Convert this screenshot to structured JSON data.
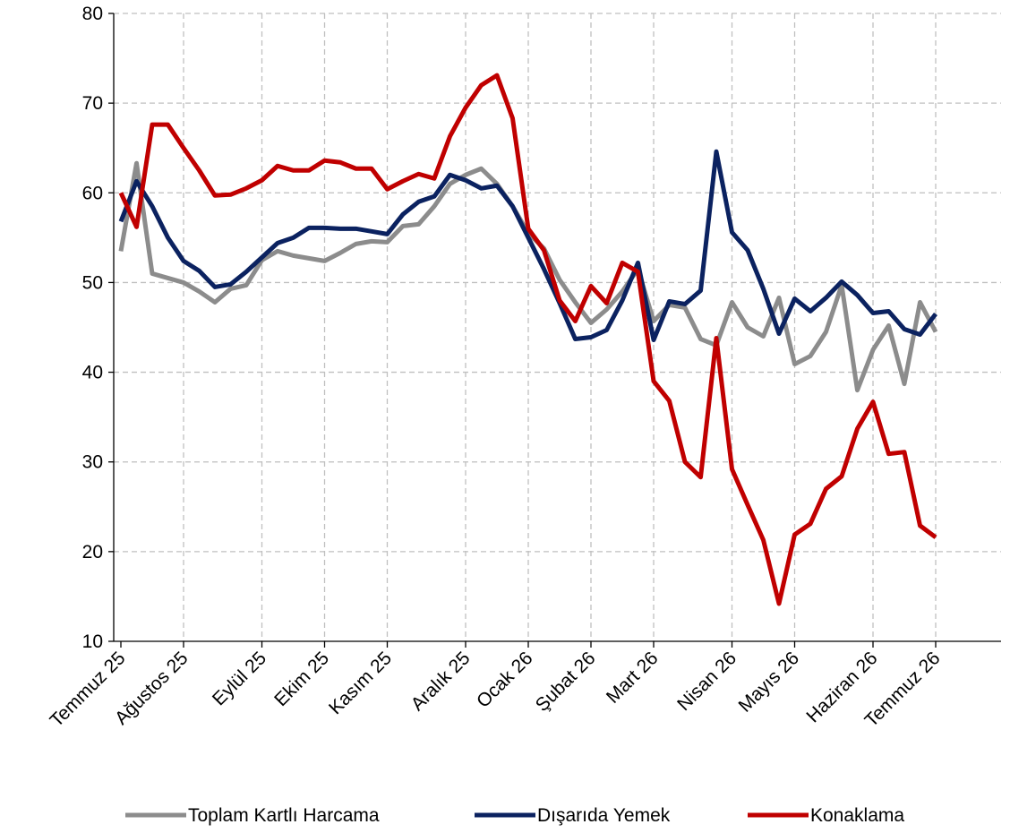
{
  "chart_data": {
    "type": "line",
    "categories": [
      "Temmuz 25",
      null,
      null,
      null,
      "Ağustos 25",
      null,
      null,
      null,
      null,
      "Eylül 25",
      null,
      null,
      null,
      "Ekim 25",
      null,
      null,
      null,
      "Kasım 25",
      null,
      null,
      null,
      null,
      "Aralık 25",
      null,
      null,
      null,
      "Ocak 26",
      null,
      null,
      null,
      "Şubat 26",
      null,
      null,
      null,
      "Mart 26",
      null,
      null,
      null,
      null,
      "Nisan 26",
      null,
      null,
      null,
      "Mayıs 26",
      null,
      null,
      null,
      null,
      "Haziran 26",
      null,
      null,
      null,
      "Temmuz 26"
    ],
    "series": [
      {
        "name": "Toplam Kartlı Harcama",
        "color": "#8c8c8c",
        "values": [
          53.5,
          63.3,
          51,
          50.5,
          50,
          49,
          47.8,
          49.3,
          49.7,
          52.5,
          53.5,
          53,
          52.7,
          52.4,
          53.3,
          54.3,
          54.6,
          54.5,
          56.3,
          56.5,
          58.5,
          61,
          62,
          62.7,
          61,
          58.5,
          55.5,
          53.8,
          50.3,
          47.8,
          45.5,
          47,
          49,
          51.5,
          45.7,
          47.5,
          47.2,
          43.7,
          43,
          47.8,
          45,
          44,
          48.3,
          40.9,
          41.8,
          44.5,
          49.7,
          38,
          42.5,
          45.2,
          38.7,
          47.8,
          44.5
        ]
      },
      {
        "name": "Dışarıda Yemek",
        "color": "#0b2260",
        "values": [
          56.8,
          61.3,
          58.5,
          55,
          52.4,
          51.3,
          49.5,
          49.8,
          51.2,
          52.8,
          54.4,
          55,
          56.1,
          56.1,
          56,
          56,
          55.7,
          55.4,
          57.6,
          59,
          59.6,
          62,
          61.4,
          60.5,
          60.8,
          58.5,
          55,
          51.5,
          47.7,
          43.7,
          43.9,
          44.7,
          48,
          52.2,
          43.6,
          47.9,
          47.6,
          49.1,
          64.6,
          55.6,
          53.6,
          49.3,
          44.3,
          48.2,
          46.8,
          48.3,
          50.1,
          48.6,
          46.6,
          46.8,
          44.8,
          44.2,
          46.5
        ]
      },
      {
        "name": "Konaklama",
        "color": "#c00000",
        "values": [
          60,
          56.2,
          67.6,
          67.6,
          65,
          62.5,
          59.7,
          59.8,
          60.5,
          61.4,
          63,
          62.5,
          62.5,
          63.6,
          63.4,
          62.7,
          62.7,
          60.4,
          61.3,
          62.1,
          61.6,
          66.3,
          69.5,
          72,
          73.1,
          68.3,
          56,
          53.6,
          48,
          45.7,
          49.6,
          47.7,
          52.2,
          51.2,
          39,
          36.8,
          30,
          28.3,
          43.8,
          29.2,
          25.2,
          21.3,
          14.2,
          21.9,
          23.1,
          27,
          28.4,
          33.7,
          36.7,
          30.9,
          31.1,
          22.9,
          21.6
        ]
      }
    ],
    "ylim": [
      10,
      80
    ],
    "yticks": [
      10,
      20,
      30,
      40,
      50,
      60,
      70,
      80
    ],
    "grid": true,
    "legend": "bottom"
  }
}
